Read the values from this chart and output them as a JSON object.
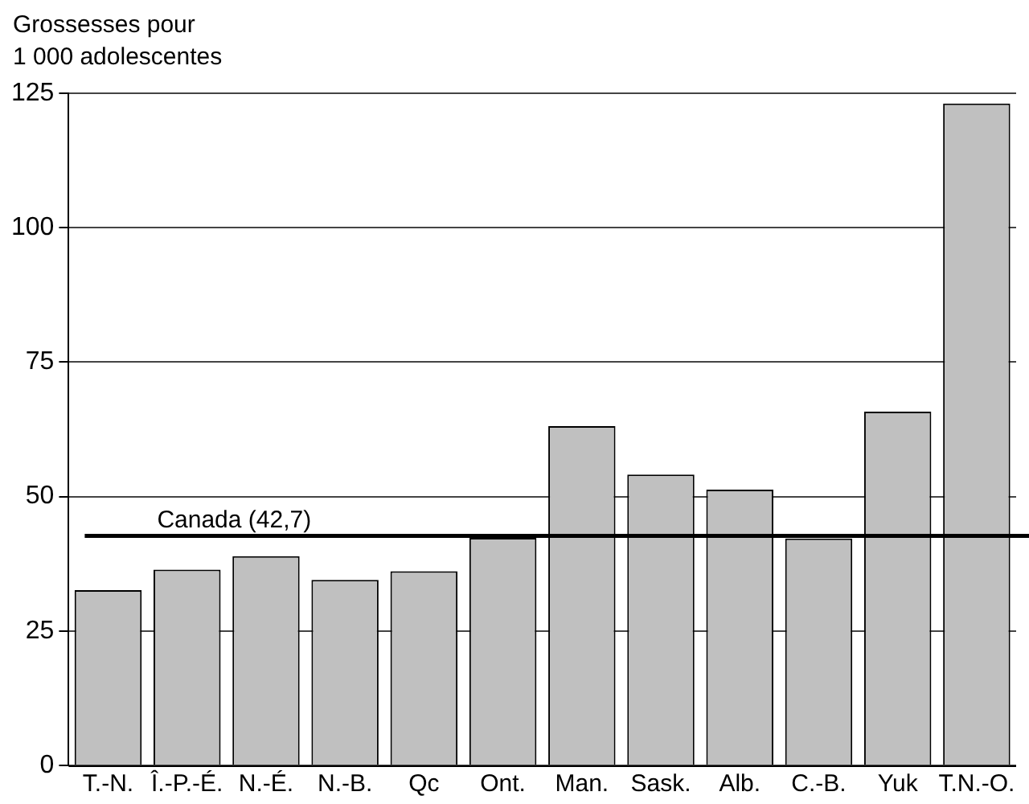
{
  "chart_data": {
    "type": "bar",
    "ylabel": "Grossesses pour\n1 000 adolescentes",
    "categories": [
      "T.-N.",
      "Î.-P.-É.",
      "N.-É.",
      "N.-B.",
      "Qc",
      "Ont.",
      "Man.",
      "Sask.",
      "Alb.",
      "C.-B.",
      "Yuk",
      "T.N.-O."
    ],
    "values": [
      32.6,
      36.4,
      38.9,
      34.5,
      36.1,
      42.3,
      63.1,
      54.1,
      51.3,
      42.2,
      65.8,
      123.1
    ],
    "color": "#c0c0c0",
    "ylim": [
      0,
      125
    ],
    "yticks": [
      0,
      25,
      50,
      75,
      100,
      125
    ],
    "grid": "y",
    "ref_lines": [
      {
        "axis": "y",
        "value": 42.7,
        "label": "Canada (42,7)",
        "color": "#000000"
      }
    ]
  }
}
